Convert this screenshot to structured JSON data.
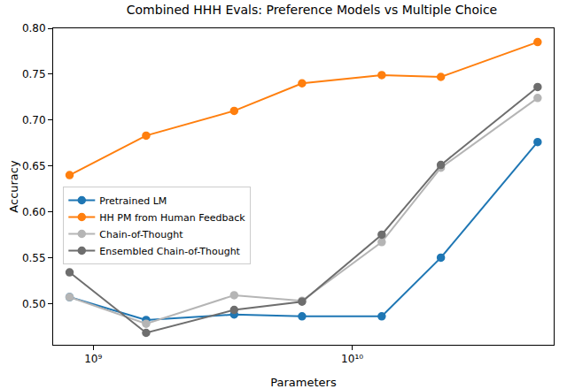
{
  "chart_data": {
    "type": "line",
    "title": "Combined HHH Evals: Preference Models vs Multiple Choice",
    "x_label": "Parameters",
    "y_label": "Accuracy",
    "x": [
      810000000,
      1600000000,
      3500000000,
      6400000000,
      13000000000,
      22000000000,
      52000000000
    ],
    "series": [
      {
        "name": "Pretrained LM",
        "color": "#1f77b4",
        "marker": "circle-dot",
        "values": [
          0.507,
          0.482,
          0.488,
          0.486,
          0.486,
          0.55,
          0.676
        ]
      },
      {
        "name": "HH PM from Human Feedback",
        "color": "#ff7f0e",
        "marker": "circle",
        "values": [
          0.64,
          0.683,
          0.71,
          0.74,
          0.749,
          0.747,
          0.785
        ]
      },
      {
        "name": "Chain-of-Thought",
        "color": "#b5b5b5",
        "marker": "circle-x",
        "values": [
          0.507,
          0.478,
          0.509,
          0.503,
          0.567,
          0.648,
          0.724
        ]
      },
      {
        "name": "Ensembled Chain-of-Thought",
        "color": "#6e6e6e",
        "marker": "circle-x",
        "values": [
          0.534,
          0.468,
          0.493,
          0.502,
          0.575,
          0.651,
          0.736
        ]
      }
    ],
    "log": "x",
    "xlim": [
      700000000,
      60000000000
    ],
    "xticks": [
      {
        "value": 1000000000,
        "label": "10⁹"
      },
      {
        "value": 10000000000,
        "label": "10¹⁰"
      }
    ],
    "ylim": [
      0.455,
      0.8
    ],
    "yticks": [
      {
        "value": 0.5,
        "label": "0.50"
      },
      0.55,
      {
        "value": 0.6,
        "label": "0.60"
      },
      0.65,
      {
        "value": 0.7,
        "label": "0.70"
      },
      0.75,
      {
        "value": 0.8,
        "label": "0.80"
      }
    ],
    "grid": false,
    "legend": "center left"
  }
}
